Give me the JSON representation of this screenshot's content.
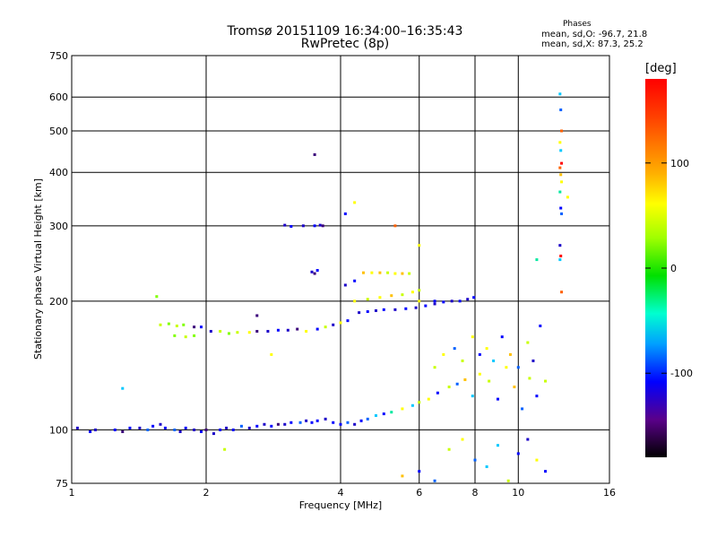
{
  "chart_data": {
    "type": "scatter",
    "title": "Tromsø 20151109 16:34:00–16:35:43",
    "subtitle": "RwPretec (8p)",
    "xlabel": "Frequency [MHz]",
    "ylabel": "Stationary phase Virtual Height [km]",
    "x_scale": "log",
    "y_scale": "log",
    "xlim": [
      1,
      16
    ],
    "ylim": [
      75,
      750
    ],
    "x_ticks": [
      "1",
      "2",
      "4",
      "6",
      "8",
      "10",
      "16"
    ],
    "x_tick_values": [
      1,
      2,
      4,
      6,
      8,
      10,
      16
    ],
    "y_ticks": [
      "75",
      "100",
      "200",
      "300",
      "400",
      "500",
      "600",
      "750"
    ],
    "y_tick_values": [
      75,
      100,
      200,
      300,
      400,
      500,
      600,
      750
    ],
    "grid": true,
    "phase_stats": {
      "title": "Phases",
      "line1": "mean, sd,O: -96.7, 21.8",
      "line2": "mean, sd,X: 87.3, 25.2"
    },
    "colorbar": {
      "label": "[deg]",
      "range": [
        -180,
        180
      ],
      "ticks": [
        "100",
        "0",
        "-100"
      ],
      "tick_values": [
        100,
        0,
        -100
      ]
    },
    "point_colors": {
      "-160": "#3a007a",
      "-130": "#1a00c8",
      "-110": "#0000ff",
      "-90": "#0060ff",
      "-60": "#00c8ff",
      "-30": "#00e8a0",
      "0": "#00e000",
      "30": "#80ff00",
      "60": "#c8ff00",
      "90": "#ffff00",
      "120": "#ffc000",
      "150": "#ff6000",
      "170": "#ff0000"
    },
    "series": [
      {
        "points": [
          [
            1.03,
            101,
            -130
          ],
          [
            1.1,
            99,
            -110
          ],
          [
            1.13,
            100,
            -130
          ],
          [
            1.25,
            100,
            -110
          ],
          [
            1.3,
            99,
            -160
          ],
          [
            1.35,
            101,
            -110
          ],
          [
            1.42,
            101,
            -130
          ],
          [
            1.48,
            100,
            -90
          ],
          [
            1.52,
            102,
            -110
          ],
          [
            1.58,
            103,
            -130
          ],
          [
            1.62,
            101,
            -110
          ],
          [
            1.7,
            100,
            -90
          ],
          [
            1.75,
            99,
            -130
          ],
          [
            1.8,
            101,
            -110
          ],
          [
            1.88,
            100,
            -130
          ],
          [
            1.95,
            99,
            -110
          ],
          [
            2.0,
            100,
            -160
          ],
          [
            2.08,
            98,
            -130
          ],
          [
            2.15,
            100,
            -110
          ],
          [
            2.22,
            101,
            -130
          ],
          [
            2.3,
            100,
            -110
          ],
          [
            2.4,
            102,
            -90
          ],
          [
            2.5,
            101,
            -130
          ],
          [
            2.6,
            102,
            -110
          ],
          [
            2.7,
            103,
            -130
          ],
          [
            2.8,
            102,
            -110
          ],
          [
            2.9,
            103,
            -160
          ],
          [
            3.0,
            103,
            -130
          ],
          [
            3.1,
            104,
            -110
          ],
          [
            3.25,
            104,
            -90
          ],
          [
            3.35,
            105,
            -130
          ],
          [
            3.45,
            104,
            -110
          ],
          [
            3.55,
            105,
            -110
          ],
          [
            3.7,
            106,
            -130
          ],
          [
            3.85,
            104,
            -110
          ],
          [
            4.0,
            103,
            -110
          ],
          [
            4.15,
            104,
            -90
          ],
          [
            4.3,
            103,
            -130
          ],
          [
            4.45,
            105,
            -110
          ],
          [
            4.6,
            106,
            -90
          ],
          [
            4.8,
            108,
            -60
          ],
          [
            5.0,
            109,
            -110
          ],
          [
            5.2,
            110,
            -30
          ],
          [
            5.5,
            112,
            90
          ],
          [
            5.8,
            114,
            -60
          ],
          [
            6.0,
            116,
            60
          ],
          [
            6.3,
            118,
            90
          ],
          [
            6.6,
            122,
            -110
          ],
          [
            7.0,
            126,
            60
          ],
          [
            7.3,
            128,
            -90
          ],
          [
            7.6,
            131,
            120
          ],
          [
            7.9,
            120,
            -60
          ],
          [
            8.2,
            135,
            90
          ],
          [
            8.6,
            130,
            60
          ],
          [
            9.0,
            118,
            -110
          ],
          [
            9.4,
            140,
            90
          ],
          [
            9.8,
            126,
            120
          ],
          [
            10.2,
            112,
            -90
          ],
          [
            10.6,
            132,
            60
          ],
          [
            11.0,
            120,
            -110
          ]
        ]
      },
      {
        "points": [
          [
            1.58,
            176,
            60
          ],
          [
            1.65,
            177,
            30
          ],
          [
            1.72,
            175,
            60
          ],
          [
            1.78,
            176,
            30
          ],
          [
            1.88,
            174,
            -160
          ],
          [
            1.95,
            174,
            -110
          ],
          [
            1.7,
            166,
            30
          ],
          [
            1.8,
            165,
            60
          ],
          [
            1.88,
            166,
            30
          ],
          [
            2.05,
            170,
            -130
          ],
          [
            2.15,
            170,
            60
          ],
          [
            2.25,
            168,
            30
          ],
          [
            2.35,
            169,
            60
          ],
          [
            2.5,
            169,
            90
          ],
          [
            2.6,
            170,
            -160
          ],
          [
            2.75,
            170,
            -130
          ],
          [
            2.9,
            171,
            -110
          ],
          [
            3.05,
            171,
            -130
          ],
          [
            3.2,
            172,
            -160
          ],
          [
            3.35,
            170,
            90
          ],
          [
            3.55,
            172,
            -110
          ],
          [
            3.7,
            174,
            60
          ],
          [
            3.85,
            176,
            -130
          ],
          [
            4.0,
            178,
            90
          ],
          [
            4.15,
            180,
            -110
          ]
        ]
      },
      {
        "points": [
          [
            4.4,
            188,
            -130
          ],
          [
            4.6,
            189,
            -110
          ],
          [
            4.8,
            190,
            -130
          ],
          [
            5.0,
            191,
            -110
          ],
          [
            5.3,
            191,
            -130
          ],
          [
            5.6,
            192,
            -110
          ],
          [
            5.9,
            193,
            -130
          ],
          [
            6.2,
            195,
            -110
          ],
          [
            6.5,
            197,
            -130
          ],
          [
            6.8,
            199,
            -110
          ],
          [
            7.1,
            200,
            -130
          ],
          [
            7.4,
            200,
            -110
          ],
          [
            7.7,
            202,
            -130
          ],
          [
            7.95,
            204,
            -110
          ],
          [
            4.3,
            200,
            90
          ],
          [
            4.6,
            202,
            60
          ],
          [
            4.9,
            204,
            90
          ],
          [
            5.2,
            206,
            120
          ],
          [
            5.5,
            207,
            60
          ],
          [
            5.8,
            210,
            90
          ],
          [
            6.0,
            212,
            60
          ]
        ]
      },
      {
        "points": [
          [
            4.1,
            218,
            -130
          ],
          [
            4.3,
            223,
            -110
          ],
          [
            4.5,
            233,
            120
          ],
          [
            4.7,
            233,
            90
          ],
          [
            4.9,
            233,
            120
          ],
          [
            5.1,
            233,
            60
          ],
          [
            5.3,
            232,
            90
          ],
          [
            5.5,
            232,
            120
          ],
          [
            5.7,
            232,
            60
          ],
          [
            6.0,
            200,
            90
          ],
          [
            6.5,
            200,
            -110
          ]
        ]
      },
      {
        "points": [
          [
            3.0,
            301,
            -130
          ],
          [
            3.1,
            299,
            -110
          ],
          [
            3.3,
            300,
            -130
          ],
          [
            3.5,
            300,
            -110
          ],
          [
            3.6,
            301,
            -130
          ],
          [
            3.65,
            300,
            -160
          ],
          [
            3.45,
            234,
            -130
          ],
          [
            3.55,
            236,
            -110
          ],
          [
            3.5,
            232,
            -160
          ],
          [
            3.5,
            440,
            -160
          ],
          [
            4.1,
            320,
            -110
          ],
          [
            4.3,
            340,
            90
          ],
          [
            5.3,
            300,
            150
          ],
          [
            6.0,
            270,
            90
          ]
        ]
      },
      {
        "points": [
          [
            12.4,
            610,
            -60
          ],
          [
            12.45,
            560,
            -90
          ],
          [
            12.5,
            500,
            150
          ],
          [
            12.4,
            470,
            90
          ],
          [
            12.45,
            450,
            -60
          ],
          [
            12.5,
            420,
            170
          ],
          [
            12.4,
            410,
            150
          ],
          [
            12.45,
            395,
            120
          ],
          [
            12.5,
            380,
            90
          ],
          [
            12.4,
            360,
            -30
          ],
          [
            12.45,
            330,
            -110
          ],
          [
            12.5,
            320,
            -90
          ],
          [
            12.4,
            270,
            -130
          ],
          [
            12.45,
            255,
            170
          ],
          [
            12.5,
            210,
            150
          ],
          [
            12.4,
            250,
            -60
          ],
          [
            12.9,
            350,
            90
          ],
          [
            11.0,
            250,
            -30
          ]
        ]
      },
      {
        "points": [
          [
            6.5,
            140,
            60
          ],
          [
            6.8,
            150,
            90
          ],
          [
            7.2,
            155,
            -90
          ],
          [
            7.5,
            145,
            60
          ],
          [
            7.9,
            165,
            90
          ],
          [
            8.2,
            150,
            -110
          ],
          [
            8.5,
            155,
            90
          ],
          [
            8.8,
            145,
            -60
          ],
          [
            9.2,
            165,
            -110
          ],
          [
            9.6,
            150,
            120
          ],
          [
            10.0,
            140,
            -90
          ],
          [
            10.5,
            160,
            60
          ],
          [
            10.8,
            145,
            -130
          ],
          [
            11.2,
            175,
            -110
          ],
          [
            11.5,
            130,
            60
          ],
          [
            6.0,
            80,
            -110
          ],
          [
            7.0,
            90,
            60
          ],
          [
            8.0,
            85,
            -90
          ],
          [
            9.0,
            92,
            -60
          ],
          [
            10.0,
            88,
            -110
          ],
          [
            11.0,
            85,
            90
          ],
          [
            5.5,
            78,
            120
          ],
          [
            6.5,
            76,
            -90
          ],
          [
            7.5,
            95,
            90
          ],
          [
            8.5,
            82,
            -60
          ],
          [
            9.5,
            76,
            60
          ],
          [
            10.5,
            95,
            -130
          ],
          [
            11.5,
            80,
            -110
          ],
          [
            1.55,
            205,
            30
          ],
          [
            1.3,
            125,
            -60
          ],
          [
            2.6,
            185,
            -160
          ],
          [
            2.8,
            150,
            90
          ],
          [
            2.2,
            90,
            60
          ]
        ]
      }
    ]
  }
}
